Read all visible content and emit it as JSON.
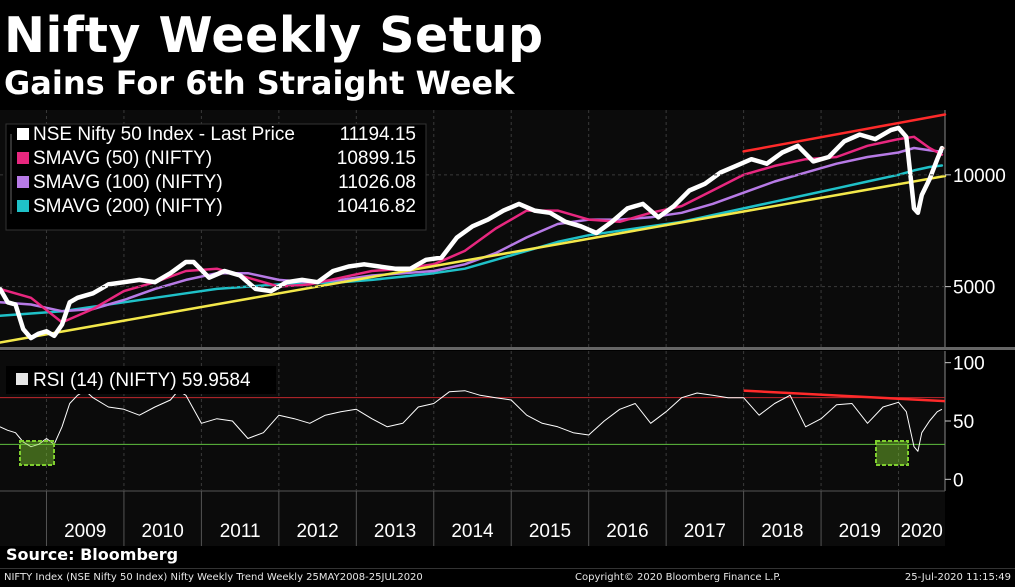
{
  "header": {
    "title": "Nifty Weekly Setup",
    "subtitle": "Gains For 6th Straight Week"
  },
  "source": "Source: Bloomberg",
  "footer": {
    "left": "NIFTY Index (NSE Nifty 50 Index) Nifty Weekly Trend  Weekly 25MAY2008-25JUL2020",
    "center": "Copyright© 2020 Bloomberg Finance L.P.",
    "right": "25-Jul-2020  11:15:49"
  },
  "colors": {
    "price": "#ffffff",
    "sma50": "#e8277f",
    "sma100": "#b77ae6",
    "sma200": "#1fc1c8",
    "trendline": "#f3e84a",
    "resistance": "#ff2a2a",
    "rsi": "#ffffff",
    "rsi_overbought": "#c0272d",
    "rsi_oversold": "#5fbf3f",
    "highlight": "#7fcf2f"
  },
  "chart_data": [
    {
      "type": "line",
      "title": "",
      "xlabel": "",
      "ylabel": "",
      "x_ticks": [
        "2009",
        "2010",
        "2011",
        "2012",
        "2013",
        "2014",
        "2015",
        "2016",
        "2017",
        "2018",
        "2019",
        "2020"
      ],
      "y_ticks": [
        5000,
        10000
      ],
      "xlim": [
        2008.4,
        2020.6
      ],
      "ylim": [
        2300,
        12900
      ],
      "grid": true,
      "legend_position": "top-left",
      "legend": [
        {
          "label": "NSE Nifty 50 Index - Last Price",
          "value": "11194.15",
          "color": "#ffffff"
        },
        {
          "label": "SMAVG (50) (NIFTY)",
          "value": "10899.15",
          "color": "#e8277f"
        },
        {
          "label": "SMAVG (100) (NIFTY)",
          "value": "11026.08",
          "color": "#b77ae6"
        },
        {
          "label": "SMAVG (200) (NIFTY)",
          "value": "10416.82",
          "color": "#1fc1c8"
        }
      ],
      "series": [
        {
          "name": "NSE Nifty 50 Index - Last Price",
          "color": "#ffffff",
          "x": [
            2008.4,
            2008.5,
            2008.6,
            2008.7,
            2008.8,
            2008.9,
            2009.0,
            2009.1,
            2009.2,
            2009.3,
            2009.4,
            2009.5,
            2009.6,
            2009.8,
            2010.0,
            2010.2,
            2010.4,
            2010.6,
            2010.8,
            2010.9,
            2011.1,
            2011.3,
            2011.5,
            2011.7,
            2011.9,
            2012.1,
            2012.3,
            2012.5,
            2012.7,
            2012.9,
            2013.1,
            2013.3,
            2013.5,
            2013.7,
            2013.9,
            2014.1,
            2014.3,
            2014.5,
            2014.7,
            2014.9,
            2015.1,
            2015.3,
            2015.5,
            2015.7,
            2015.9,
            2016.1,
            2016.3,
            2016.5,
            2016.7,
            2016.9,
            2017.1,
            2017.3,
            2017.5,
            2017.7,
            2017.9,
            2018.1,
            2018.3,
            2018.5,
            2018.7,
            2018.9,
            2019.1,
            2019.3,
            2019.5,
            2019.7,
            2019.9,
            2020.0,
            2020.1,
            2020.2,
            2020.25,
            2020.3,
            2020.4,
            2020.5,
            2020.56
          ],
          "y": [
            4900,
            4300,
            4200,
            3100,
            2700,
            2900,
            3000,
            2800,
            3300,
            4300,
            4500,
            4600,
            4700,
            5100,
            5200,
            5300,
            5200,
            5600,
            6100,
            6100,
            5400,
            5700,
            5500,
            4900,
            4800,
            5200,
            5300,
            5200,
            5700,
            5900,
            6000,
            5900,
            5800,
            5800,
            6200,
            6300,
            7200,
            7700,
            8000,
            8400,
            8700,
            8400,
            8300,
            7900,
            7700,
            7400,
            7900,
            8500,
            8700,
            8100,
            8600,
            9300,
            9600,
            10100,
            10400,
            10700,
            10500,
            11000,
            11300,
            10600,
            10800,
            11500,
            11800,
            11600,
            12000,
            12100,
            11700,
            8500,
            8300,
            9100,
            9800,
            10700,
            11194
          ]
        },
        {
          "name": "SMAVG (50) (NIFTY)",
          "color": "#e8277f",
          "x": [
            2008.4,
            2008.8,
            2009.2,
            2009.6,
            2010.0,
            2010.4,
            2010.8,
            2011.2,
            2011.6,
            2012.0,
            2012.4,
            2012.8,
            2013.2,
            2013.6,
            2014.0,
            2014.4,
            2014.8,
            2015.2,
            2015.6,
            2016.0,
            2016.4,
            2016.8,
            2017.2,
            2017.6,
            2018.0,
            2018.4,
            2018.8,
            2019.2,
            2019.6,
            2020.0,
            2020.2,
            2020.4,
            2020.56
          ],
          "y": [
            4900,
            4500,
            3400,
            4000,
            4800,
            5200,
            5700,
            5800,
            5400,
            5000,
            5100,
            5400,
            5700,
            5800,
            6000,
            6600,
            7600,
            8400,
            8400,
            8000,
            7900,
            8300,
            8600,
            9300,
            10000,
            10400,
            10700,
            10800,
            11300,
            11600,
            11700,
            11200,
            10899
          ]
        },
        {
          "name": "SMAVG (100) (NIFTY)",
          "color": "#b77ae6",
          "x": [
            2008.4,
            2008.8,
            2009.2,
            2009.6,
            2010.0,
            2010.4,
            2010.8,
            2011.2,
            2011.6,
            2012.0,
            2012.4,
            2012.8,
            2013.2,
            2013.6,
            2014.0,
            2014.4,
            2014.8,
            2015.2,
            2015.6,
            2016.0,
            2016.4,
            2016.8,
            2017.2,
            2017.6,
            2018.0,
            2018.4,
            2018.8,
            2019.2,
            2019.6,
            2020.0,
            2020.2,
            2020.4,
            2020.56
          ],
          "y": [
            4300,
            4200,
            3900,
            4000,
            4400,
            4900,
            5300,
            5600,
            5600,
            5300,
            5200,
            5300,
            5500,
            5600,
            5700,
            6000,
            6500,
            7200,
            7800,
            8000,
            8000,
            8100,
            8300,
            8700,
            9200,
            9700,
            10100,
            10500,
            10800,
            11000,
            11200,
            11100,
            11026
          ]
        },
        {
          "name": "SMAVG (200) (NIFTY)",
          "color": "#1fc1c8",
          "x": [
            2008.4,
            2008.8,
            2009.2,
            2009.6,
            2010.0,
            2010.4,
            2010.8,
            2011.2,
            2011.6,
            2012.0,
            2012.4,
            2012.8,
            2013.2,
            2013.6,
            2014.0,
            2014.4,
            2014.8,
            2015.2,
            2015.6,
            2016.0,
            2016.4,
            2016.8,
            2017.2,
            2017.6,
            2018.0,
            2018.4,
            2018.8,
            2019.2,
            2019.6,
            2020.0,
            2020.2,
            2020.4,
            2020.56
          ],
          "y": [
            3700,
            3800,
            3900,
            4100,
            4300,
            4500,
            4700,
            4900,
            5000,
            5100,
            5150,
            5200,
            5300,
            5450,
            5600,
            5800,
            6200,
            6600,
            7000,
            7300,
            7500,
            7700,
            7900,
            8200,
            8500,
            8800,
            9100,
            9400,
            9700,
            10000,
            10200,
            10350,
            10417
          ]
        },
        {
          "name": "Trendline",
          "color": "#f3e84a",
          "x": [
            2008.4,
            2020.6
          ],
          "y": [
            2500,
            9950
          ]
        },
        {
          "name": "Resistance",
          "color": "#ff2a2a",
          "x": [
            2018.0,
            2020.6
          ],
          "y": [
            11050,
            12700
          ]
        }
      ]
    },
    {
      "type": "line",
      "title": "",
      "xlabel": "",
      "ylabel": "",
      "x_ticks": [
        "2009",
        "2010",
        "2011",
        "2012",
        "2013",
        "2014",
        "2015",
        "2016",
        "2017",
        "2018",
        "2019",
        "2020"
      ],
      "y_ticks": [
        0,
        50,
        100
      ],
      "xlim": [
        2008.4,
        2020.6
      ],
      "ylim": [
        -10,
        110
      ],
      "grid": true,
      "legend_position": "top-left",
      "legend": [
        {
          "label": "RSI (14) (NIFTY)",
          "value": "59.9584",
          "color": "#ffffff"
        }
      ],
      "reference_lines": [
        {
          "value": 70,
          "color": "#c0272d"
        },
        {
          "value": 30,
          "color": "#5fbf3f"
        }
      ],
      "series": [
        {
          "name": "RSI (14) (NIFTY)",
          "color": "#ffffff",
          "x": [
            2008.4,
            2008.5,
            2008.6,
            2008.7,
            2008.8,
            2008.9,
            2009.0,
            2009.1,
            2009.2,
            2009.3,
            2009.4,
            2009.5,
            2009.6,
            2009.8,
            2010.0,
            2010.2,
            2010.4,
            2010.6,
            2010.7,
            2010.8,
            2011.0,
            2011.2,
            2011.4,
            2011.6,
            2011.8,
            2012.0,
            2012.2,
            2012.4,
            2012.6,
            2012.8,
            2013.0,
            2013.2,
            2013.4,
            2013.6,
            2013.8,
            2014.0,
            2014.2,
            2014.4,
            2014.6,
            2014.8,
            2015.0,
            2015.2,
            2015.4,
            2015.6,
            2015.8,
            2016.0,
            2016.2,
            2016.4,
            2016.6,
            2016.8,
            2017.0,
            2017.2,
            2017.4,
            2017.6,
            2017.8,
            2018.0,
            2018.2,
            2018.4,
            2018.6,
            2018.8,
            2019.0,
            2019.2,
            2019.4,
            2019.6,
            2019.8,
            2020.0,
            2020.1,
            2020.2,
            2020.25,
            2020.3,
            2020.4,
            2020.5,
            2020.56
          ],
          "y": [
            45,
            42,
            40,
            32,
            28,
            30,
            35,
            30,
            45,
            65,
            72,
            76,
            70,
            62,
            60,
            55,
            62,
            68,
            76,
            72,
            48,
            52,
            50,
            35,
            40,
            55,
            52,
            48,
            55,
            58,
            60,
            52,
            45,
            48,
            62,
            65,
            75,
            76,
            72,
            70,
            68,
            55,
            48,
            45,
            40,
            38,
            50,
            60,
            65,
            48,
            58,
            70,
            74,
            72,
            70,
            70,
            55,
            65,
            72,
            45,
            52,
            64,
            65,
            48,
            62,
            66,
            58,
            28,
            24,
            40,
            50,
            58,
            60
          ]
        }
      ]
    }
  ]
}
